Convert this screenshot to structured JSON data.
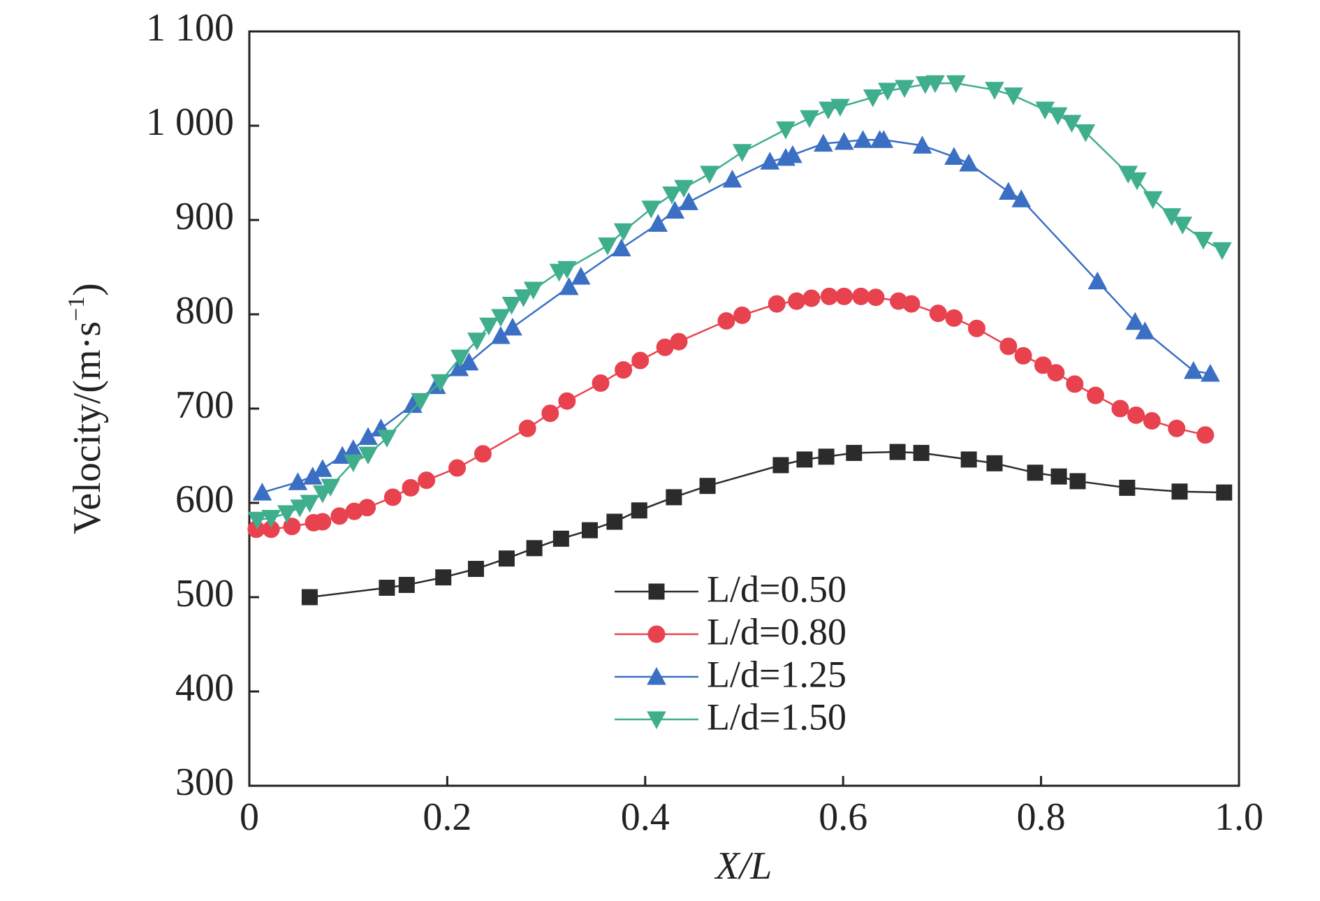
{
  "chart_data": {
    "type": "line",
    "xlabel": "X/L",
    "ylabel": {
      "text": "Velocity/(m·s",
      "superscript": "−1",
      "suffix": ")"
    },
    "xlim": [
      0,
      1
    ],
    "ylim": [
      300,
      1100
    ],
    "xticks": [
      0,
      0.2,
      0.4,
      0.6,
      0.8,
      {
        "value": 1,
        "label": "1.0"
      }
    ],
    "yticks": [
      300,
      400,
      500,
      600,
      700,
      800,
      900,
      {
        "value": 1000,
        "label": "1 000"
      },
      {
        "value": 1100,
        "label": "1 100"
      }
    ],
    "series": [
      {
        "name": "L/d=0.50",
        "color": "#2b2b2b",
        "marker": "square",
        "x": [
          0.061,
          0.139,
          0.159,
          0.196,
          0.229,
          0.26,
          0.288,
          0.315,
          0.344,
          0.369,
          0.394,
          0.429,
          0.463,
          0.537,
          0.561,
          0.583,
          0.611,
          0.655,
          0.679,
          0.727,
          0.753,
          0.794,
          0.818,
          0.837,
          0.887,
          0.94,
          0.985
        ],
        "values": [
          500,
          510,
          513,
          521,
          530,
          541,
          552,
          562,
          571,
          580,
          592,
          606,
          618,
          640,
          646,
          649,
          653,
          654,
          653,
          646,
          642,
          632,
          628,
          623,
          616,
          612,
          611
        ]
      },
      {
        "name": "L/d=0.80",
        "color": "#e8424f",
        "marker": "circle",
        "x": [
          0.007,
          0.022,
          0.043,
          0.065,
          0.074,
          0.091,
          0.106,
          0.119,
          0.145,
          0.163,
          0.179,
          0.21,
          0.236,
          0.281,
          0.304,
          0.321,
          0.355,
          0.378,
          0.395,
          0.42,
          0.434,
          0.482,
          0.498,
          0.533,
          0.553,
          0.568,
          0.586,
          0.601,
          0.618,
          0.633,
          0.656,
          0.669,
          0.696,
          0.712,
          0.735,
          0.767,
          0.782,
          0.802,
          0.815,
          0.834,
          0.855,
          0.88,
          0.896,
          0.912,
          0.937,
          0.966
        ],
        "values": [
          572,
          572,
          575,
          579,
          580,
          586,
          591,
          595,
          606,
          616,
          624,
          637,
          652,
          679,
          695,
          708,
          727,
          741,
          751,
          765,
          771,
          793,
          799,
          811,
          814,
          817,
          819,
          819,
          819,
          818,
          814,
          811,
          801,
          796,
          785,
          766,
          756,
          746,
          738,
          726,
          714,
          700,
          693,
          687,
          679,
          672
        ]
      },
      {
        "name": "L/d=1.25",
        "color": "#3a6fc4",
        "marker": "triangle-up",
        "x": [
          0.013,
          0.049,
          0.064,
          0.074,
          0.094,
          0.105,
          0.12,
          0.133,
          0.165,
          0.189,
          0.212,
          0.222,
          0.254,
          0.266,
          0.323,
          0.335,
          0.376,
          0.413,
          0.43,
          0.444,
          0.488,
          0.526,
          0.542,
          0.549,
          0.58,
          0.601,
          0.62,
          0.637,
          0.641,
          0.68,
          0.712,
          0.727,
          0.767,
          0.78,
          0.857,
          0.895,
          0.905,
          0.954,
          0.971
        ],
        "values": [
          611,
          622,
          628,
          636,
          650,
          657,
          670,
          679,
          704,
          724,
          743,
          749,
          777,
          786,
          829,
          840,
          870,
          896,
          910,
          919,
          943,
          962,
          966,
          969,
          981,
          983,
          985,
          985,
          985,
          979,
          967,
          960,
          930,
          922,
          835,
          792,
          782,
          740,
          737
        ]
      },
      {
        "name": "L/d=1.50",
        "color": "#3fae8c",
        "marker": "triangle-down",
        "x": [
          0.008,
          0.022,
          0.038,
          0.051,
          0.061,
          0.074,
          0.082,
          0.105,
          0.12,
          0.139,
          0.173,
          0.193,
          0.213,
          0.23,
          0.242,
          0.254,
          0.265,
          0.277,
          0.287,
          0.313,
          0.321,
          0.362,
          0.378,
          0.406,
          0.427,
          0.439,
          0.465,
          0.498,
          0.542,
          0.566,
          0.585,
          0.597,
          0.63,
          0.645,
          0.662,
          0.683,
          0.693,
          0.714,
          0.753,
          0.772,
          0.804,
          0.817,
          0.831,
          0.845,
          0.888,
          0.897,
          0.913,
          0.932,
          0.943,
          0.964,
          0.983
        ],
        "values": [
          582,
          584,
          589,
          595,
          600,
          610,
          617,
          643,
          651,
          669,
          708,
          728,
          754,
          772,
          788,
          797,
          810,
          818,
          826,
          845,
          848,
          873,
          888,
          912,
          927,
          934,
          949,
          972,
          996,
          1008,
          1017,
          1020,
          1030,
          1037,
          1040,
          1044,
          1045,
          1045,
          1038,
          1032,
          1017,
          1011,
          1003,
          993,
          949,
          942,
          922,
          904,
          895,
          879,
          868
        ]
      }
    ]
  }
}
